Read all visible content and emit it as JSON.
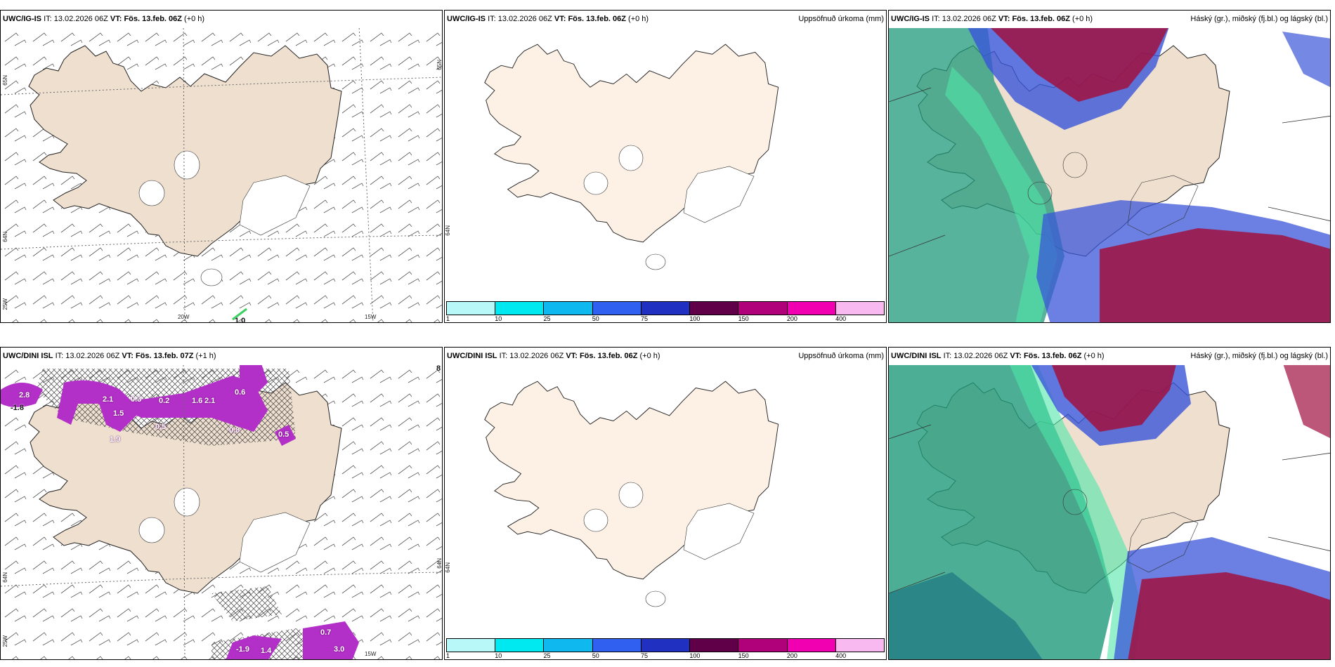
{
  "panels": {
    "p1": {
      "model": "UWC/IG-IS",
      "it_label": "IT:",
      "it": "13.02.2026 06Z",
      "vt_label": "VT:",
      "vt": "Fös. 13.feb. 06Z",
      "lead": "(+0 h)",
      "right_title": "",
      "ticks": [
        "65N",
        "64N",
        "25W",
        "20W",
        "15W",
        "65N"
      ],
      "labels": [
        "1.0"
      ]
    },
    "p2": {
      "model": "UWC/IG-IS",
      "it_label": "IT:",
      "it": "13.02.2026 06Z",
      "vt_label": "VT:",
      "vt": "Fös. 13.feb. 06Z",
      "lead": "(+0 h)",
      "right_title": "Uppsöfnuð úrkoma (mm)",
      "ticks": [
        "64N"
      ]
    },
    "p3": {
      "model": "UWC/IG-IS",
      "it_label": "IT:",
      "it": "13.02.2026 06Z",
      "vt_label": "VT:",
      "vt": "Fös. 13.feb. 06Z",
      "lead": "(+0 h)",
      "right_title": "Háský (gr.), miðský (fj.bl.) og lágský (bl.)"
    },
    "p4": {
      "model": "UWC/DINI ISL",
      "it_label": "IT:",
      "it": "13.02.2026 06Z",
      "vt_label": "VT:",
      "vt": "Fös. 13.feb. 07Z",
      "lead": "(+1 h)",
      "right_title": "",
      "ticks": [
        "64N",
        "25W",
        "15W",
        "64N"
      ],
      "labels": [
        "2.8",
        "-1.8",
        "0.3",
        "1.5",
        "2.1",
        "1.9",
        "0.6",
        "0.5",
        "1.6",
        "2.1",
        "0.2",
        "0.5",
        "0.8",
        "-1.9",
        "0.7",
        "3.0",
        "1.4",
        "8"
      ]
    },
    "p5": {
      "model": "UWC/DINI ISL",
      "it_label": "IT:",
      "it": "13.02.2026 06Z",
      "vt_label": "VT:",
      "vt": "Fös. 13.feb. 06Z",
      "lead": "(+0 h)",
      "right_title": "Uppsöfnuð úrkoma (mm)",
      "ticks": [
        "64N"
      ]
    },
    "p6": {
      "model": "UWC/DINI ISL",
      "it_label": "IT:",
      "it": "13.02.2026 06Z",
      "vt_label": "VT:",
      "vt": "Fös. 13.feb. 06Z",
      "lead": "(+0 h)",
      "right_title": "Háský (gr.), miðský (fj.bl.) og lágský (bl.)"
    }
  },
  "colorbar": {
    "labels": [
      "1",
      "10",
      "25",
      "50",
      "75",
      "100",
      "150",
      "200",
      "400"
    ],
    "colors": [
      "#b8f8f8",
      "#00e8f0",
      "#10b8f0",
      "#3060f0",
      "#2030c0",
      "#600048",
      "#b0007a",
      "#f000b0",
      "#f8b8f0"
    ]
  },
  "colors": {
    "land": "#efdfcf",
    "land_light": "#fdf1e5",
    "high_cloud": "#1f9a7a",
    "mid_cloud": "#3a55d8",
    "low_cloud": "#a01040",
    "precip": "#b230c8"
  }
}
